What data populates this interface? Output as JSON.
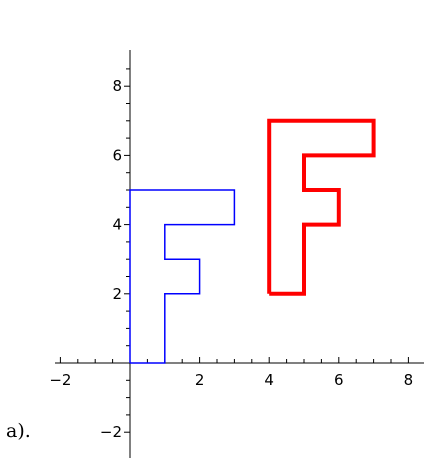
{
  "caption": "a).",
  "chart_data": {
    "type": "line",
    "xlim": [
      -2,
      8
    ],
    "ylim": [
      -2,
      8
    ],
    "x_ticks": [
      -2,
      2,
      4,
      6,
      8
    ],
    "y_ticks": [
      -2,
      2,
      4,
      6,
      8
    ],
    "grid": false,
    "series": [
      {
        "color": "#0000ff",
        "points": [
          [
            0,
            0
          ],
          [
            0,
            5
          ],
          [
            3,
            5
          ],
          [
            3,
            4
          ],
          [
            1,
            4
          ],
          [
            1,
            3
          ],
          [
            2,
            3
          ],
          [
            2,
            2
          ],
          [
            1,
            2
          ],
          [
            1,
            0
          ],
          [
            0,
            0
          ]
        ]
      },
      {
        "color": "#ff0000",
        "points": [
          [
            4,
            2
          ],
          [
            4,
            7
          ],
          [
            7,
            7
          ],
          [
            7,
            6
          ],
          [
            5,
            6
          ],
          [
            5,
            5
          ],
          [
            6,
            5
          ],
          [
            6,
            4
          ],
          [
            5,
            4
          ],
          [
            5,
            2
          ],
          [
            4,
            2
          ]
        ]
      }
    ]
  }
}
